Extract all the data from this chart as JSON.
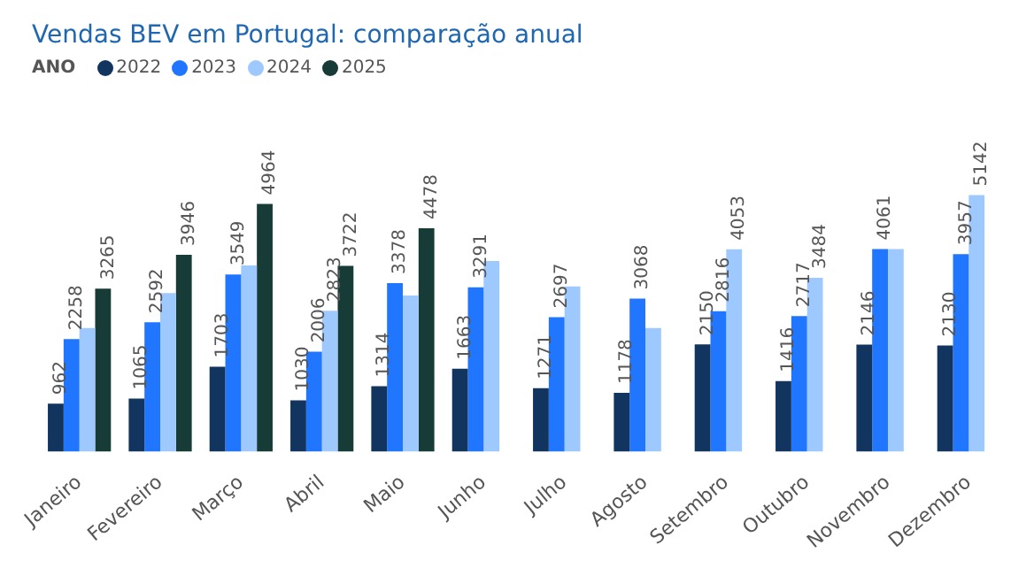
{
  "chart_data": {
    "type": "bar",
    "title": "Vendas BEV em Portugal: comparação anual",
    "legend_title": "ANO",
    "legend": "top left",
    "categories": [
      "Janeiro",
      "Fevereiro",
      "Março",
      "Abril",
      "Maio",
      "Junho",
      "Julho",
      "Agosto",
      "Setembro",
      "Outubro",
      "Novembro",
      "Dezembro"
    ],
    "series": [
      {
        "name": "2022",
        "color": "#12355f",
        "values": [
          962,
          1065,
          1703,
          1030,
          1314,
          1663,
          1271,
          1178,
          2150,
          1416,
          2146,
          2130
        ],
        "value_labels": [
          "962",
          "1065",
          "1703",
          "1030",
          "1314",
          "1663",
          "1271",
          "1178",
          "2150",
          "1416",
          "2146",
          "2130"
        ]
      },
      {
        "name": "2023",
        "color": "#2176ff",
        "values": [
          2258,
          2592,
          3549,
          2006,
          3378,
          3291,
          2697,
          3068,
          2816,
          2717,
          4061,
          3957
        ],
        "value_labels": [
          "2258",
          "2592",
          "3549",
          "2006",
          "3378",
          "3291",
          "2697",
          "3068",
          "2816",
          "2717",
          "4061",
          "3957"
        ]
      },
      {
        "name": "2024",
        "color": "#9ec9ff",
        "values": [
          2480,
          3180,
          3730,
          2823,
          3130,
          3820,
          3310,
          2480,
          4053,
          3484,
          4060,
          5142
        ],
        "value_labels": [
          null,
          null,
          null,
          "2823",
          null,
          null,
          null,
          null,
          "4053",
          "3484",
          null,
          "5142"
        ]
      },
      {
        "name": "2025",
        "color": "#173b37",
        "values": [
          3265,
          3946,
          4964,
          3722,
          4478,
          null,
          null,
          null,
          null,
          null,
          null,
          null
        ],
        "value_labels": [
          "3265",
          "3946",
          "4964",
          "3722",
          "4478",
          null,
          null,
          null,
          null,
          null,
          null,
          null
        ]
      }
    ]
  }
}
